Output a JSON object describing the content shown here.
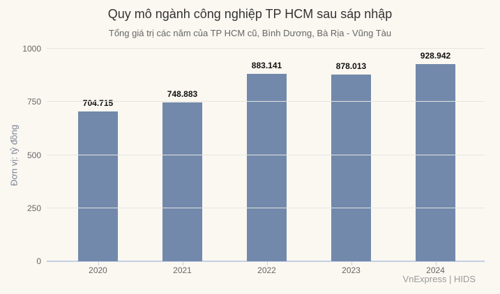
{
  "chart_data": {
    "type": "bar",
    "title": "Quy mô ngành công nghiệp TP HCM sau sáp nhập",
    "subtitle": "Tổng giá trị các năm của TP HCM cũ, Bình Dương, Bà Rịa - Vũng Tàu",
    "ylabel": "Đơn vị: tỷ đồng",
    "xlabel": "",
    "categories": [
      "2020",
      "2021",
      "2022",
      "2023",
      "2024"
    ],
    "values": [
      704.715,
      748.883,
      883.141,
      878.013,
      928.942
    ],
    "value_labels": [
      "704.715",
      "748.883",
      "883.141",
      "878.013",
      "928.942"
    ],
    "ylim": [
      0,
      1000
    ],
    "yticks": [
      0,
      250,
      500,
      750,
      1000
    ],
    "grid": true,
    "legend": "none",
    "credit": "VnExpress | HIDS"
  },
  "colors": {
    "background": "#faf8f1",
    "title": "#333333",
    "subtitle": "#666666",
    "y_title": "#7b8494",
    "axis_label": "#666666",
    "value_label": "#111111",
    "grid_line": "#e7e5e0",
    "axis_line": "#c3cfe3",
    "bar": "#7289ab",
    "credit": "#9a9a9a"
  }
}
